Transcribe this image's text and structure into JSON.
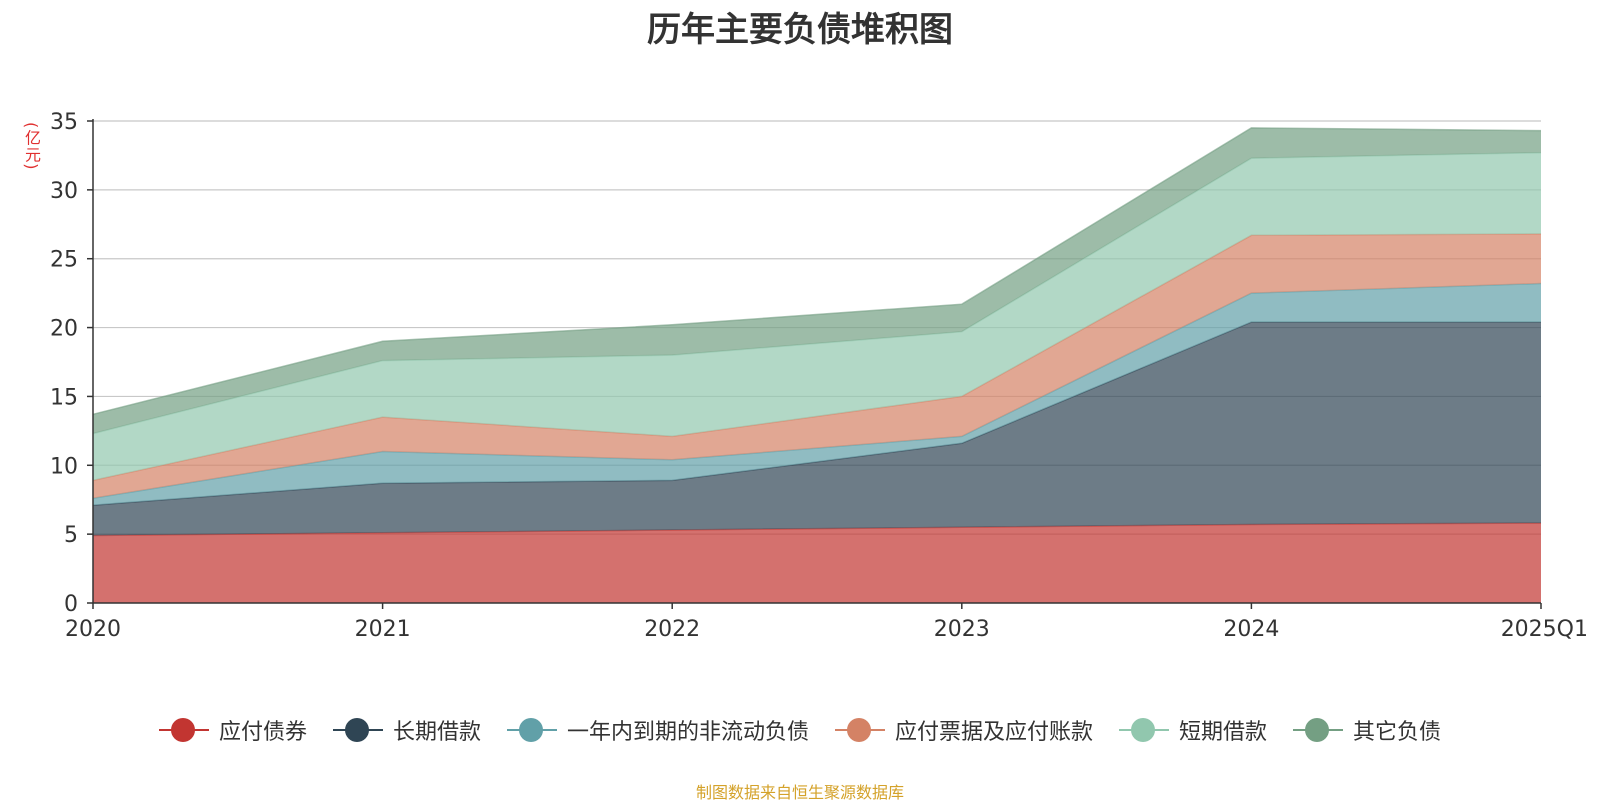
{
  "chart_data": {
    "type": "area",
    "stacked": true,
    "title": "历年主要负债堆积图",
    "unit": "(亿元)",
    "categories": [
      "2020",
      "2021",
      "2022",
      "2023",
      "2024",
      "2025Q1"
    ],
    "ylim": [
      0,
      35
    ],
    "yticks": [
      0,
      5,
      10,
      15,
      20,
      25,
      30,
      35
    ],
    "grid": true,
    "legend_position": "bottom",
    "series": [
      {
        "name": "应付债券",
        "color": "#c23531",
        "values": [
          4.9,
          5.1,
          5.3,
          5.5,
          5.7,
          5.8
        ]
      },
      {
        "name": "长期借款",
        "color": "#2f4554",
        "values": [
          2.2,
          3.6,
          3.6,
          6.1,
          14.7,
          14.6
        ]
      },
      {
        "name": "一年内到期的非流动负债",
        "color": "#61a0a8",
        "values": [
          0.5,
          2.3,
          1.5,
          0.5,
          2.1,
          2.8
        ]
      },
      {
        "name": "应付票据及应付账款",
        "color": "#d48265",
        "values": [
          1.3,
          2.5,
          1.7,
          2.9,
          4.2,
          3.6
        ]
      },
      {
        "name": "短期借款",
        "color": "#91c7ae",
        "values": [
          3.4,
          4.1,
          5.9,
          4.7,
          5.6,
          5.9
        ]
      },
      {
        "name": "其它负债",
        "color": "#749f83",
        "values": [
          1.4,
          1.4,
          2.2,
          2.0,
          2.2,
          1.6
        ]
      }
    ]
  },
  "source_note": "制图数据来自恒生聚源数据库"
}
